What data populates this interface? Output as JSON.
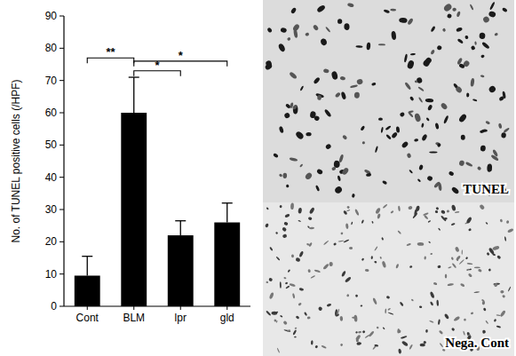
{
  "chart_data": {
    "type": "bar",
    "y_label": "No. of TUNEL positive cells (/HPF)",
    "categories": [
      "Cont",
      "BLM",
      "lpr",
      "gld"
    ],
    "values": [
      9.5,
      60,
      22,
      26
    ],
    "errors": [
      6,
      11,
      4.5,
      6
    ],
    "color": "#000000",
    "ylim": [
      0,
      90
    ],
    "yticks": [
      0,
      10,
      20,
      30,
      40,
      50,
      60,
      70,
      80,
      90
    ],
    "grid": false,
    "significance": [
      {
        "from": 0,
        "to": 1,
        "y": 77,
        "label": "**"
      },
      {
        "from": 1,
        "to": 2,
        "y": 73,
        "label": "*"
      },
      {
        "from": 1,
        "to": 3,
        "y": 76,
        "label": "*"
      }
    ]
  },
  "micrograph": {
    "labels": [
      "TUNEL",
      "Nega. Cont"
    ]
  }
}
